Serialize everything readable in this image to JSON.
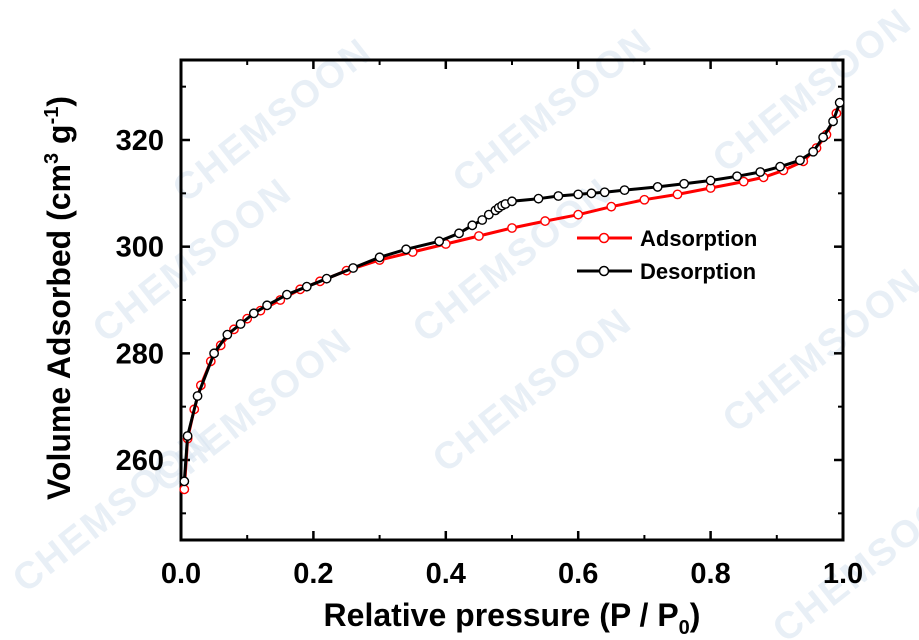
{
  "chart_data": {
    "type": "line",
    "title": "",
    "xlabel": "Relative pressure (P / P",
    "xlabel_sub": "0",
    "xlabel_end": ")",
    "ylabel": "Volume Adsorbed (cm",
    "ylabel_sup1": "3",
    "ylabel_mid": " g",
    "ylabel_sup2": "-1",
    "ylabel_end": ")",
    "xlim": [
      0.0,
      1.0
    ],
    "ylim": [
      245,
      335
    ],
    "xticks": [
      "0.0",
      "0.2",
      "0.4",
      "0.6",
      "0.8",
      "1.0"
    ],
    "xtick_values": [
      0.0,
      0.2,
      0.4,
      0.6,
      0.8,
      1.0
    ],
    "yticks": [
      "260",
      "280",
      "300",
      "320"
    ],
    "ytick_values": [
      260,
      280,
      300,
      320
    ],
    "legend_position": "center-right",
    "grid": false,
    "series": [
      {
        "name": "Adsorption",
        "color": "#ff0000",
        "marker": "open-circle",
        "x": [
          0.005,
          0.01,
          0.02,
          0.03,
          0.045,
          0.06,
          0.08,
          0.1,
          0.12,
          0.15,
          0.18,
          0.21,
          0.25,
          0.3,
          0.35,
          0.4,
          0.45,
          0.5,
          0.55,
          0.6,
          0.65,
          0.7,
          0.75,
          0.8,
          0.85,
          0.88,
          0.91,
          0.94,
          0.96,
          0.975,
          0.99
        ],
        "y": [
          254.5,
          264,
          269.5,
          274,
          278.5,
          281.5,
          284.5,
          286.5,
          288,
          290,
          292,
          293.5,
          295.5,
          297.5,
          299,
          300.5,
          302,
          303.5,
          304.8,
          306,
          307.5,
          308.8,
          309.8,
          311,
          312.2,
          313,
          314.3,
          316,
          318.5,
          321,
          325
        ]
      },
      {
        "name": "Desorption",
        "color": "#000000",
        "marker": "open-circle",
        "x": [
          0.005,
          0.01,
          0.025,
          0.05,
          0.07,
          0.09,
          0.11,
          0.13,
          0.16,
          0.19,
          0.22,
          0.26,
          0.3,
          0.34,
          0.39,
          0.42,
          0.44,
          0.455,
          0.465,
          0.475,
          0.48,
          0.485,
          0.49,
          0.5,
          0.54,
          0.57,
          0.6,
          0.62,
          0.64,
          0.67,
          0.72,
          0.76,
          0.8,
          0.84,
          0.875,
          0.905,
          0.935,
          0.955,
          0.97,
          0.985,
          0.995
        ],
        "y": [
          256,
          264.5,
          272,
          280,
          283.5,
          285.5,
          287.5,
          289,
          291,
          292.5,
          294,
          296,
          298,
          299.5,
          301,
          302.5,
          304,
          305,
          306,
          306.8,
          307.3,
          307.7,
          308,
          308.5,
          309,
          309.5,
          309.8,
          310,
          310.2,
          310.6,
          311.2,
          311.8,
          312.4,
          313.2,
          314,
          315,
          316.2,
          317.8,
          320.5,
          323.5,
          327
        ]
      }
    ]
  },
  "watermark": "CHEMSOON"
}
